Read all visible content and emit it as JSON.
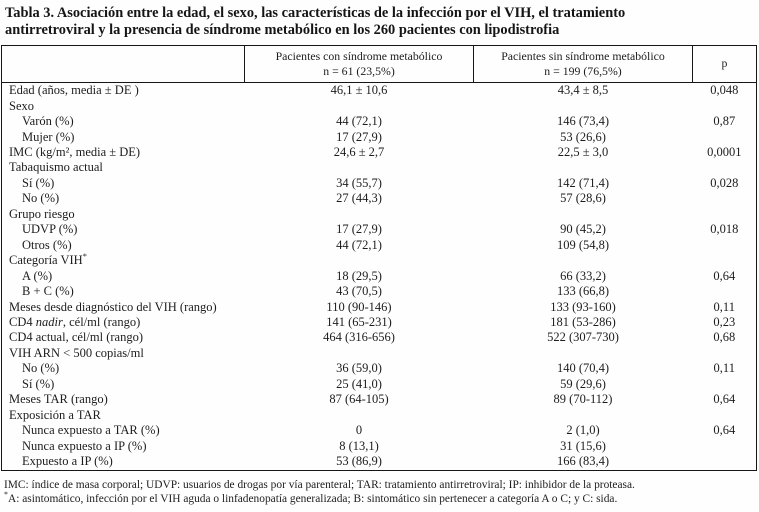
{
  "title": {
    "line1": "Tabla 3. Asociación entre la edad, el sexo, las características de la infección por el VIH, el tratamiento",
    "line2": "antirretroviral y la presencia de síndrome metabólico en los 260 pacientes con lipodistrofia"
  },
  "table": {
    "header": {
      "col1": "",
      "col2": {
        "line1": "Pacientes con síndrome metabólico",
        "line2": "n = 61 (23,5%)"
      },
      "col3": {
        "line1": "Pacientes sin síndrome metabólico",
        "line2": "n = 199 (76,5%)"
      },
      "col4": "p"
    },
    "rows": [
      {
        "label": "Edad (años, media ± DE )",
        "with_ms": "46,1 ± 10,6",
        "without_ms": "43,4 ± 8,5",
        "p": "0,048"
      },
      {
        "label": "Sexo",
        "with_ms": "",
        "without_ms": "",
        "p": ""
      },
      {
        "label": "Varón (%)",
        "with_ms": "44 (72,1)",
        "without_ms": "146 (73,4)",
        "p": "0,87"
      },
      {
        "label": "Mujer (%)",
        "with_ms": "17 (27,9)",
        "without_ms": "53 (26,6)",
        "p": ""
      },
      {
        "label": "IMC (kg/m², media ± DE)",
        "with_ms": "24,6 ± 2,7",
        "without_ms": "22,5 ± 3,0",
        "p": "0,0001"
      },
      {
        "label": "Tabaquismo actual",
        "with_ms": "",
        "without_ms": "",
        "p": ""
      },
      {
        "label": "Sí (%)",
        "with_ms": "34 (55,7)",
        "without_ms": "142 (71,4)",
        "p": "0,028"
      },
      {
        "label": "No (%)",
        "with_ms": "27 (44,3)",
        "without_ms": "57 (28,6)",
        "p": ""
      },
      {
        "label": "Grupo riesgo",
        "with_ms": "",
        "without_ms": "",
        "p": ""
      },
      {
        "label": "UDVP (%)",
        "with_ms": "17 (27,9)",
        "without_ms": "90 (45,2)",
        "p": "0,018"
      },
      {
        "label": "Otros (%)",
        "with_ms": "44 (72,1)",
        "without_ms": "109 (54,8)",
        "p": ""
      },
      {
        "label": "Categoría VIH",
        "sup": "*",
        "with_ms": "",
        "without_ms": "",
        "p": ""
      },
      {
        "label": "A (%)",
        "with_ms": "18 (29,5)",
        "without_ms": "66 (33,2)",
        "p": "0,64"
      },
      {
        "label": "B + C (%)",
        "with_ms": "43 (70,5)",
        "without_ms": "133 (66,8)",
        "p": ""
      },
      {
        "label": "Meses desde diagnóstico del VIH (rango)",
        "with_ms": "110 (90-146)",
        "without_ms": "133 (93-160)",
        "p": "0,11"
      },
      {
        "label_pre": "CD4 ",
        "label_italic": "nadir",
        "label_post": ", cél/ml (rango)",
        "with_ms": "141 (65-231)",
        "without_ms": "181 (53-286)",
        "p": "0,23"
      },
      {
        "label": "CD4 actual, cél/ml (rango)",
        "with_ms": "464 (316-656)",
        "without_ms": "522 (307-730)",
        "p": "0,68"
      },
      {
        "label": "VIH ARN < 500 copias/ml",
        "with_ms": "",
        "without_ms": "",
        "p": ""
      },
      {
        "label": "No (%)",
        "with_ms": "36 (59,0)",
        "without_ms": "140 (70,4)",
        "p": "0,11"
      },
      {
        "label": "Sí (%)",
        "with_ms": "25 (41,0)",
        "without_ms": "59 (29,6)",
        "p": ""
      },
      {
        "label": "Meses TAR (rango)",
        "with_ms": "87 (64-105)",
        "without_ms": "89 (70-112)",
        "p": "0,64"
      },
      {
        "label": "Exposición a TAR",
        "with_ms": "",
        "without_ms": "",
        "p": ""
      },
      {
        "label": "Nunca expuesto a TAR (%)",
        "with_ms": "0",
        "without_ms": "2 (1,0)",
        "p": "0,64"
      },
      {
        "label": "Nunca expuesto a IP (%)",
        "with_ms": "8 (13,1)",
        "without_ms": "31 (15,6)",
        "p": ""
      },
      {
        "label": "Expuesto a IP (%)",
        "with_ms": "53 (86,9)",
        "without_ms": "166 (83,4)",
        "p": ""
      }
    ]
  },
  "footnotes": {
    "line1": "IMC: índice de masa corporal; UDVP: usuarios de drogas por vía parenteral; TAR: tratamiento antirretroviral; IP: inhibidor de la proteasa.",
    "line2_sup": "*",
    "line2_text": "A: asintomático, infección por el VIH aguda o linfadenopatía generalizada; B: sintomático sin pertenecer a categoría A o C; y C: sida."
  }
}
